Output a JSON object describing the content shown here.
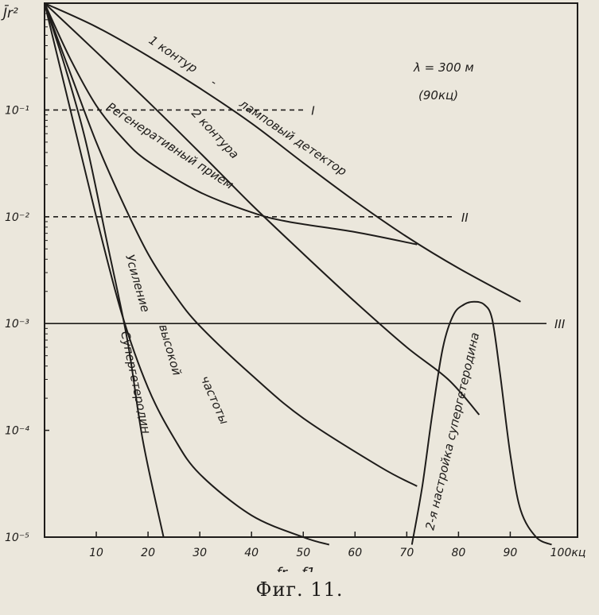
{
  "chart_data": {
    "type": "line",
    "caption": "Фиг. 11.",
    "y_label": "J̄r²",
    "x_label": "fr - f1",
    "x_unit_label": "100кц",
    "x_ticks": [
      10,
      20,
      30,
      40,
      50,
      60,
      70,
      80,
      90
    ],
    "y_ticks": [
      {
        "label": "10⁻¹",
        "value": 0.1
      },
      {
        "label": "10⁻²",
        "value": 0.01
      },
      {
        "label": "10⁻³",
        "value": 0.001
      },
      {
        "label": "10⁻⁴",
        "value": 0.0001
      },
      {
        "label": "10⁻⁵",
        "value": 1e-05
      }
    ],
    "x_range": [
      0,
      103
    ],
    "y_range": [
      1e-05,
      1
    ],
    "y_scale": "log",
    "annotation": {
      "line1": "λ = 300 м",
      "line2": "(90кц)"
    },
    "series": [
      {
        "name": "1 контур - ламповый детектор",
        "points": [
          [
            0,
            1
          ],
          [
            10,
            0.6
          ],
          [
            20,
            0.32
          ],
          [
            30,
            0.16
          ],
          [
            40,
            0.075
          ],
          [
            50,
            0.032
          ],
          [
            60,
            0.014
          ],
          [
            70,
            0.0065
          ],
          [
            80,
            0.0033
          ],
          [
            92,
            0.0016
          ]
        ]
      },
      {
        "name": "2 контура",
        "points": [
          [
            0,
            1
          ],
          [
            10,
            0.35
          ],
          [
            20,
            0.12
          ],
          [
            30,
            0.04
          ],
          [
            40,
            0.013
          ],
          [
            50,
            0.0045
          ],
          [
            60,
            0.0016
          ],
          [
            70,
            0.0006
          ],
          [
            78,
            0.0003
          ],
          [
            84,
            0.00014
          ]
        ]
      },
      {
        "name": "Регенеративный прием",
        "points": [
          [
            0,
            1
          ],
          [
            5,
            0.3
          ],
          [
            10,
            0.11
          ],
          [
            15,
            0.055
          ],
          [
            20,
            0.033
          ],
          [
            30,
            0.017
          ],
          [
            40,
            0.011
          ],
          [
            47,
            0.009
          ],
          [
            60,
            0.0072
          ],
          [
            72,
            0.0055
          ]
        ]
      },
      {
        "name": "Усиление высокой частоты",
        "points": [
          [
            0,
            1
          ],
          [
            5,
            0.22
          ],
          [
            10,
            0.05
          ],
          [
            15,
            0.014
          ],
          [
            20,
            0.0045
          ],
          [
            25,
            0.0019
          ],
          [
            30,
            0.00095
          ],
          [
            40,
            0.00033
          ],
          [
            50,
            0.00013
          ],
          [
            65,
            4.5e-05
          ],
          [
            72,
            3e-05
          ]
        ]
      },
      {
        "name": "Супергетеродин",
        "points": [
          [
            0,
            1
          ],
          [
            4,
            0.25
          ],
          [
            8,
            0.05
          ],
          [
            12,
            0.006
          ],
          [
            16,
            0.0007
          ],
          [
            19,
            8e-05
          ],
          [
            23,
            1e-05
          ]
        ]
      },
      {
        "name": "",
        "points": [
          [
            0,
            1
          ],
          [
            5,
            0.1
          ],
          [
            10,
            0.01
          ],
          [
            15,
            0.0012
          ],
          [
            20,
            0.00025
          ],
          [
            25,
            8.5e-05
          ],
          [
            30,
            3.9e-05
          ],
          [
            40,
            1.6e-05
          ],
          [
            50,
            1e-05
          ],
          [
            55,
            8.5e-06
          ]
        ]
      },
      {
        "name": "2-я настройка супергетеродина",
        "points": [
          [
            71,
            8.5e-06
          ],
          [
            73,
            3e-05
          ],
          [
            75,
            0.00015
          ],
          [
            77,
            0.0006
          ],
          [
            79,
            0.0012
          ],
          [
            81,
            0.0015
          ],
          [
            83,
            0.0016
          ],
          [
            85,
            0.0015
          ],
          [
            86.5,
            0.0011
          ],
          [
            88,
            0.00035
          ],
          [
            90,
            6e-05
          ],
          [
            92,
            1.8e-05
          ],
          [
            95,
            1e-05
          ],
          [
            98,
            8.5e-06
          ]
        ]
      }
    ],
    "reference_lines": [
      {
        "name": "I",
        "value": 0.1,
        "x_end": 50,
        "style": "dashed"
      },
      {
        "name": "II",
        "value": 0.01,
        "x_end": 79,
        "style": "dashed"
      },
      {
        "name": "III",
        "value": 0.001,
        "x_end": 97,
        "style": "solid"
      }
    ],
    "curve_labels": {
      "l1a": "1 контур",
      "l1b": "-",
      "l1c": "ламповый детектор",
      "l2": "2 контура",
      "l3": "Регенеративный прием",
      "l4a": "Усиление",
      "l4b": "высокой",
      "l4c": "частоты",
      "l5": "Супергетеродин",
      "l6": "2-я настройка супергетеродина"
    }
  }
}
